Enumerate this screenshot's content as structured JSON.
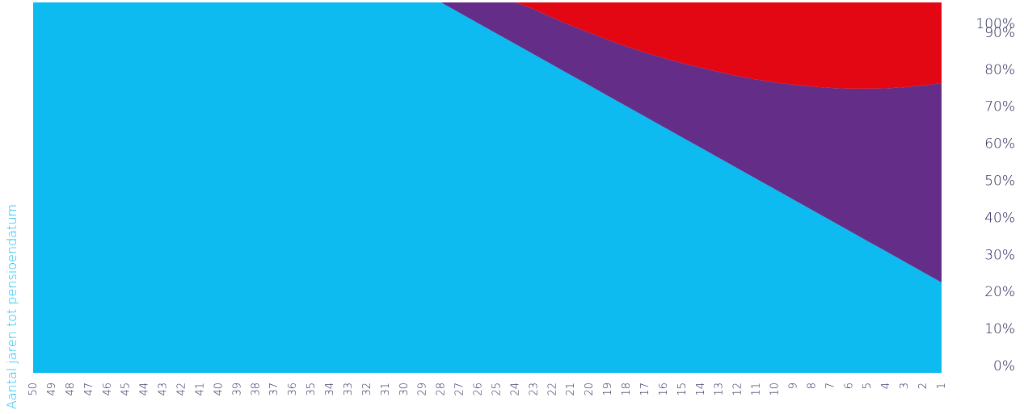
{
  "chart_data": {
    "type": "area",
    "stacked": true,
    "x": [
      50,
      49,
      48,
      47,
      46,
      45,
      44,
      43,
      42,
      41,
      40,
      39,
      38,
      37,
      36,
      35,
      34,
      33,
      32,
      31,
      30,
      29,
      28,
      27,
      26,
      25,
      24,
      23,
      22,
      21,
      20,
      19,
      18,
      17,
      16,
      15,
      14,
      13,
      12,
      11,
      10,
      9,
      8,
      7,
      6,
      5,
      4,
      3,
      2,
      1
    ],
    "xlabel": "Aantal jaren tot pensioendatum",
    "ylabel": "",
    "ylim": [
      0,
      100
    ],
    "y_ticks": [
      "0%",
      "10%",
      "20%",
      "30%",
      "40%",
      "50%",
      "60%",
      "70%",
      "80%",
      "90%",
      "100%"
    ],
    "y_axis_side": "right",
    "series": [
      {
        "color": "#0dbbf0",
        "values": [
          100,
          100,
          100,
          100,
          100,
          100,
          100,
          100,
          100,
          100,
          100,
          100,
          100,
          100,
          100,
          100,
          100,
          100,
          100,
          100,
          100,
          100,
          100,
          97.2,
          94.4,
          91.6,
          88.8,
          86.0,
          83.2,
          80.4,
          77.6,
          74.8,
          72.0,
          69.2,
          66.4,
          63.6,
          60.8,
          58.0,
          55.2,
          52.4,
          49.6,
          46.8,
          44.0,
          41.2,
          38.4,
          35.6,
          32.8,
          30.0,
          27.2,
          24.4
        ]
      },
      {
        "color": "#642d87",
        "values": [
          5,
          5,
          5,
          5,
          5,
          5,
          5,
          5,
          5,
          5,
          5,
          5,
          5,
          5,
          5,
          5,
          5,
          5,
          5,
          5,
          5,
          5,
          5,
          7.8,
          10.6,
          11.6,
          11.8,
          12.2,
          12.7,
          13.4,
          14.2,
          15.1,
          16.1,
          17.3,
          18.6,
          20.0,
          21.6,
          23.2,
          24.9,
          26.8,
          28.8,
          31.0,
          33.3,
          35.7,
          38.3,
          41.1,
          44.0,
          47.1,
          50.4,
          53.8
        ]
      },
      {
        "color": "#e30613",
        "values": [
          0,
          0,
          0,
          0,
          0,
          0,
          0,
          0,
          0,
          0,
          0,
          0,
          0,
          0,
          0,
          0,
          0,
          0,
          0,
          0,
          0,
          0,
          0,
          0,
          0,
          1.8,
          4.4,
          6.8,
          9.1,
          11.2,
          13.2,
          15.1,
          16.9,
          18.5,
          20.0,
          21.4,
          22.6,
          23.8,
          24.9,
          25.8,
          26.6,
          27.2,
          27.7,
          28.1,
          28.3,
          28.3,
          28.2,
          27.9,
          27.4,
          26.8
        ]
      }
    ]
  }
}
